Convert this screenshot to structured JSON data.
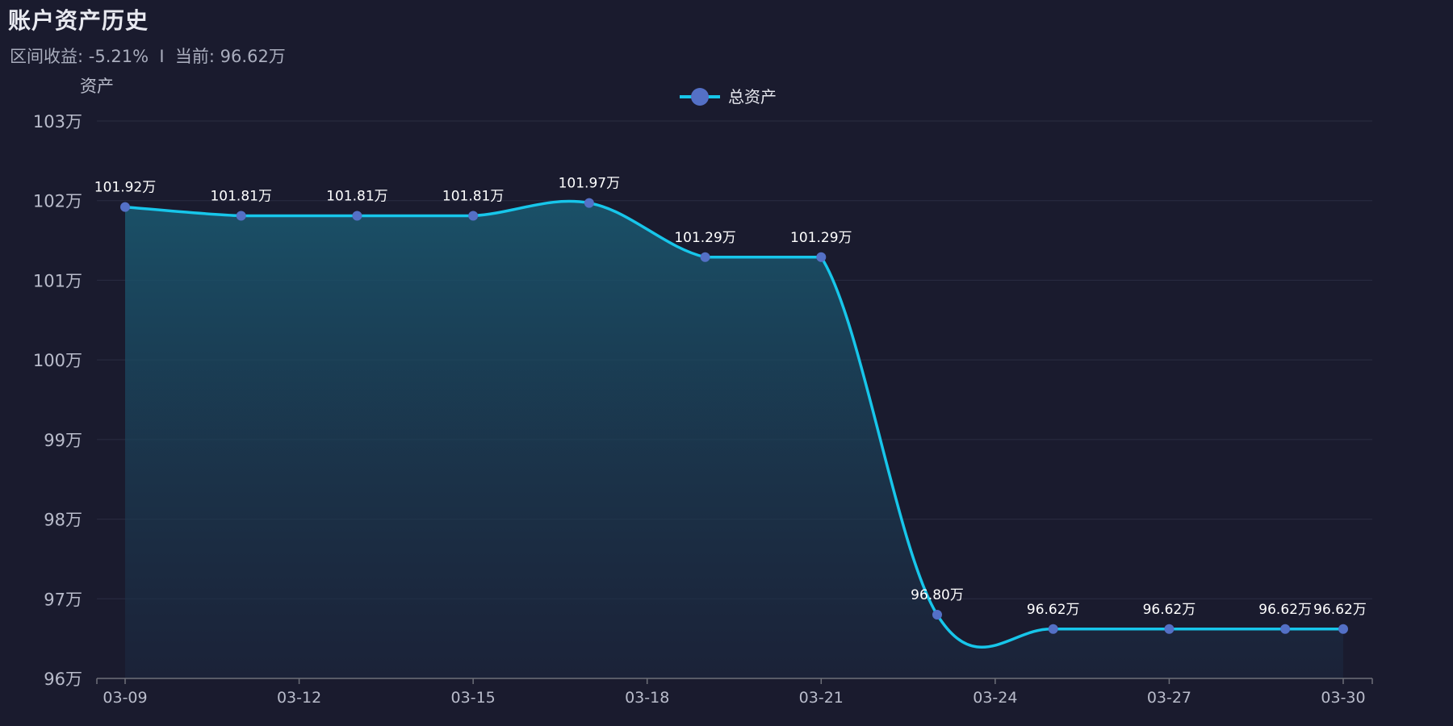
{
  "header": {
    "title": "账户资产历史",
    "subtitle": "区间收益: -5.21%  I  当前: 96.62万"
  },
  "colors": {
    "background": "#1a1b2e",
    "line": "#17c6ea",
    "point": "#5470c6",
    "grid": "#2a2d42",
    "axis_text": "#b9bccb",
    "label_text": "#ffffff"
  },
  "chart_data": {
    "type": "area",
    "title": "",
    "xlabel": "",
    "ylabel": "资产",
    "legend": {
      "position": "top-center"
    },
    "grid": true,
    "ylim": [
      96,
      103
    ],
    "y_ticks": [
      {
        "value": 96,
        "label": "96万"
      },
      {
        "value": 97,
        "label": "97万"
      },
      {
        "value": 98,
        "label": "98万"
      },
      {
        "value": 99,
        "label": "99万"
      },
      {
        "value": 100,
        "label": "100万"
      },
      {
        "value": 101,
        "label": "101万"
      },
      {
        "value": 102,
        "label": "102万"
      },
      {
        "value": 103,
        "label": "103万"
      }
    ],
    "x_ticks": [
      "03-09",
      "03-12",
      "03-15",
      "03-18",
      "03-21",
      "03-24",
      "03-27",
      "03-30"
    ],
    "series": [
      {
        "name": "总资产",
        "points": [
          {
            "x": "03-09",
            "y": 101.92,
            "label": "101.92万"
          },
          {
            "x": "03-11",
            "y": 101.81,
            "label": "101.81万"
          },
          {
            "x": "03-13",
            "y": 101.81,
            "label": "101.81万"
          },
          {
            "x": "03-15",
            "y": 101.81,
            "label": "101.81万"
          },
          {
            "x": "03-17",
            "y": 101.97,
            "label": "101.97万"
          },
          {
            "x": "03-19",
            "y": 101.29,
            "label": "101.29万"
          },
          {
            "x": "03-21",
            "y": 101.29,
            "label": "101.29万"
          },
          {
            "x": "03-23",
            "y": 96.8,
            "label": "96.80万"
          },
          {
            "x": "03-25",
            "y": 96.62,
            "label": "96.62万"
          },
          {
            "x": "03-27",
            "y": 96.62,
            "label": "96.62万"
          },
          {
            "x": "03-29",
            "y": 96.62,
            "label": "96.62万"
          },
          {
            "x": "03-30",
            "y": 96.62,
            "label": "96.62万"
          }
        ]
      }
    ]
  }
}
